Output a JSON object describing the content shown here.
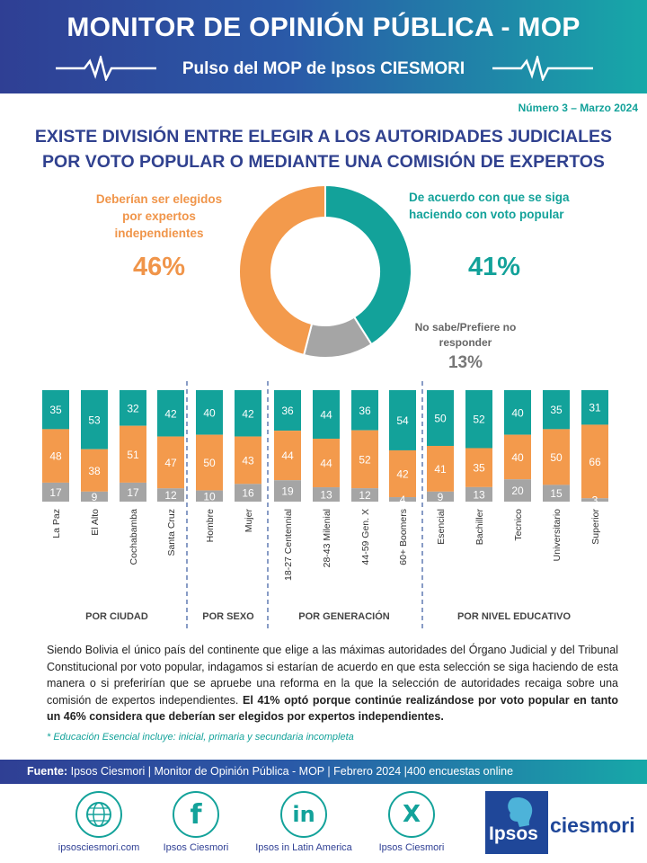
{
  "header": {
    "title": "MONITOR DE OPINIÓN PÚBLICA - MOP",
    "subtitle": "Pulso del MOP de Ipsos CIESMORI"
  },
  "issue": "Número 3 – Marzo 2024",
  "headline": {
    "line1": "EXISTE DIVISIÓN ENTRE ELEGIR A LOS AUTORIDADES JUDICIALES",
    "line2": "POR VOTO POPULAR O MEDIANTE UNA COMISIÓN DE EXPERTOS"
  },
  "summary": {
    "experts": {
      "label_l1": "Deberían ser elegidos",
      "label_l2": "por expertos",
      "label_l3": "independientes",
      "pct": "46%"
    },
    "popular": {
      "label_l1": "De acuerdo con que se siga",
      "label_l2": "haciendo con voto popular",
      "pct": "41%"
    },
    "no_sabe": {
      "label_l1": "No sabe/Prefiere no",
      "label_l2": "responder",
      "pct": "13%"
    }
  },
  "chart_data": [
    {
      "type": "pie",
      "title": "EXISTE DIVISIÓN ENTRE ELEGIR A LOS AUTORIDADES JUDICIALES POR VOTO POPULAR O MEDIANTE UNA COMISIÓN DE EXPERTOS",
      "labels": [
        "De acuerdo con que se siga haciendo con voto popular",
        "No sabe/Prefiere no responder",
        "Deberían ser elegidos por expertos independientes"
      ],
      "values": [
        41,
        13,
        46
      ],
      "colors": [
        "#13a29a",
        "#a5a5a5",
        "#f39a4c"
      ],
      "style": "donut"
    },
    {
      "type": "bar",
      "stacked": true,
      "orientation": "vertical",
      "series_colors": {
        "voto_popular": "#13a29a",
        "expertos": "#f39a4c",
        "no_sabe": "#a5a5a5"
      },
      "groups": [
        {
          "name": "POR CIUDAD",
          "categories": [
            {
              "label": "La Paz",
              "voto_popular": 35,
              "expertos": 48,
              "no_sabe": 17
            },
            {
              "label": "El Alto",
              "voto_popular": 53,
              "expertos": 38,
              "no_sabe": 9
            },
            {
              "label": "Cochabamba",
              "voto_popular": 32,
              "expertos": 51,
              "no_sabe": 17
            },
            {
              "label": "Santa Cruz",
              "voto_popular": 42,
              "expertos": 47,
              "no_sabe": 12
            }
          ]
        },
        {
          "name": "POR SEXO",
          "categories": [
            {
              "label": "Hombre",
              "voto_popular": 40,
              "expertos": 50,
              "no_sabe": 10
            },
            {
              "label": "Mujer",
              "voto_popular": 42,
              "expertos": 43,
              "no_sabe": 16
            }
          ]
        },
        {
          "name": "POR GENERACIÓN",
          "categories": [
            {
              "label": "18-27 Centennial",
              "voto_popular": 36,
              "expertos": 44,
              "no_sabe": 19
            },
            {
              "label": "28-43 Milenial",
              "voto_popular": 44,
              "expertos": 44,
              "no_sabe": 13
            },
            {
              "label": "44-59 Gen. X",
              "voto_popular": 36,
              "expertos": 52,
              "no_sabe": 12
            },
            {
              "label": "60+ Boomers",
              "voto_popular": 54,
              "expertos": 42,
              "no_sabe": 4
            }
          ]
        },
        {
          "name": "POR NIVEL EDUCATIVO",
          "categories": [
            {
              "label": "Esencial",
              "voto_popular": 50,
              "expertos": 41,
              "no_sabe": 9
            },
            {
              "label": "Bachiller",
              "voto_popular": 52,
              "expertos": 35,
              "no_sabe": 13
            },
            {
              "label": "Tecnico",
              "voto_popular": 40,
              "expertos": 40,
              "no_sabe": 20
            },
            {
              "label": "Universitario",
              "voto_popular": 35,
              "expertos": 50,
              "no_sabe": 15
            },
            {
              "label": "Superior",
              "voto_popular": 31,
              "expertos": 66,
              "no_sabe": 3
            }
          ]
        }
      ],
      "ylim": [
        0,
        100
      ]
    }
  ],
  "body": {
    "paragraph": "Siendo Bolivia el único país del continente que elige a las máximas autoridades del Órgano Judicial y del Tribunal Constitucional por voto popular, indagamos si estarían de acuerdo en que esta selección se siga haciendo de esta manera o si preferirían que se apruebe una reforma en la que la selección de autoridades recaiga sobre una comisión de expertos independientes.",
    "highlight": "El 41% optó porque continúe realizándose por voto popular en tanto un 46% considera que deberían ser elegidos por expertos independientes.",
    "footnote": "* Educación Esencial incluye: inicial, primaria y secundaria incompleta"
  },
  "source": {
    "label": "Fuente:",
    "text": "Ipsos Ciesmori | Monitor de Opinión Pública - MOP | Febrero 2024  |400 encuestas online"
  },
  "social": [
    {
      "icon": "globe-icon",
      "caption": "ipsosciesmori.com"
    },
    {
      "icon": "facebook-icon",
      "caption": "Ipsos Ciesmori"
    },
    {
      "icon": "linkedin-icon",
      "caption": "Ipsos in Latin America"
    },
    {
      "icon": "x-icon",
      "caption": "Ipsos Ciesmori"
    }
  ],
  "logo": {
    "word1": "Ipsos",
    "word2": "ciesmori"
  }
}
